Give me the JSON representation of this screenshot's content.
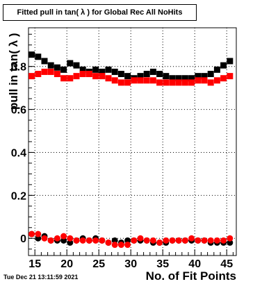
{
  "title": "Fitted pull in tan( λ ) for Global Rec All NoHits",
  "timestamp": "Tue Dec 21 13:11:59 2021",
  "chart_data": {
    "type": "scatter",
    "title": "Fitted pull in tan( λ ) for Global Rec All NoHits",
    "xlabel": "No. of Fit Points",
    "ylabel": "pull in tan( λ )",
    "xlim": [
      14,
      46.5
    ],
    "ylim": [
      -0.08,
      0.98
    ],
    "grid": true,
    "x_ticks": [
      15,
      20,
      25,
      30,
      35,
      40,
      45
    ],
    "y_ticks": [
      0,
      0.2,
      0.4,
      0.6,
      0.8
    ],
    "x": [
      14.5,
      15.5,
      16.5,
      17.5,
      18.5,
      19.5,
      20.5,
      21.5,
      22.5,
      23.5,
      24.5,
      25.5,
      26.5,
      27.5,
      28.5,
      29.5,
      30.5,
      31.5,
      32.5,
      33.5,
      34.5,
      35.5,
      36.5,
      37.5,
      38.5,
      39.5,
      40.5,
      41.5,
      42.5,
      43.5,
      44.5,
      45.5
    ],
    "series": [
      {
        "color": "#000000",
        "marker": "square",
        "values": [
          0.855,
          0.845,
          0.825,
          0.805,
          0.795,
          0.785,
          0.815,
          0.805,
          0.785,
          0.775,
          0.785,
          0.775,
          0.785,
          0.775,
          0.765,
          0.755,
          0.745,
          0.755,
          0.765,
          0.775,
          0.765,
          0.755,
          0.745,
          0.745,
          0.745,
          0.745,
          0.755,
          0.755,
          0.765,
          0.785,
          0.805,
          0.825
        ]
      },
      {
        "color": "#ff0000",
        "marker": "square",
        "values": [
          0.755,
          0.765,
          0.775,
          0.775,
          0.765,
          0.745,
          0.745,
          0.755,
          0.765,
          0.765,
          0.755,
          0.755,
          0.745,
          0.735,
          0.725,
          0.725,
          0.735,
          0.735,
          0.735,
          0.735,
          0.725,
          0.725,
          0.725,
          0.725,
          0.725,
          0.725,
          0.735,
          0.735,
          0.725,
          0.735,
          0.745,
          0.755
        ]
      },
      {
        "color": "#000000",
        "marker": "circle",
        "values": [
          0.02,
          0.0,
          0.01,
          -0.01,
          -0.01,
          -0.01,
          -0.02,
          -0.01,
          0.0,
          -0.01,
          0.0,
          -0.01,
          -0.02,
          -0.01,
          -0.02,
          -0.01,
          -0.01,
          -0.01,
          -0.01,
          -0.02,
          -0.02,
          -0.02,
          -0.01,
          -0.01,
          -0.01,
          -0.01,
          -0.01,
          -0.01,
          -0.02,
          -0.02,
          -0.02,
          -0.02
        ]
      },
      {
        "color": "#ff0000",
        "marker": "circle",
        "values": [
          0.02,
          0.02,
          0.0,
          -0.01,
          0.0,
          0.01,
          0.0,
          -0.01,
          -0.01,
          -0.01,
          -0.01,
          -0.01,
          -0.02,
          -0.03,
          -0.03,
          -0.03,
          -0.01,
          0.0,
          -0.01,
          -0.01,
          -0.02,
          -0.01,
          -0.01,
          -0.01,
          -0.01,
          0.0,
          -0.01,
          -0.01,
          -0.01,
          -0.01,
          -0.01,
          0.0
        ]
      }
    ]
  }
}
